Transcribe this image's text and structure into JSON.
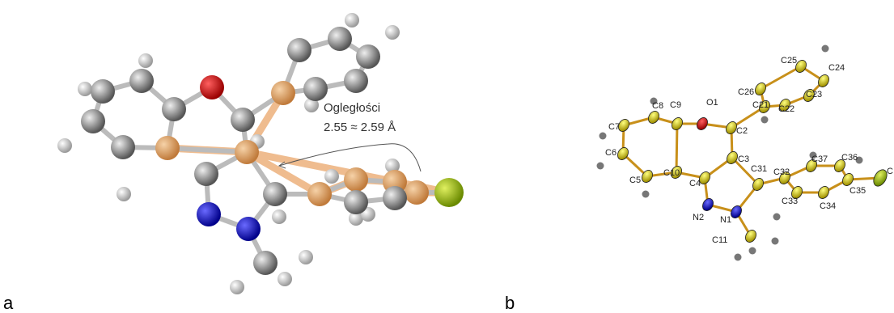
{
  "panel_a": {
    "label": "a",
    "annotation": {
      "title": "Ogległości",
      "distance": "2.55 ≈ 2.59 Å"
    }
  },
  "panel_b": {
    "label": "b",
    "atoms": [
      {
        "label": "O1"
      },
      {
        "label": "C9"
      },
      {
        "label": "C8"
      },
      {
        "label": "C7"
      },
      {
        "label": "C6"
      },
      {
        "label": "C5"
      },
      {
        "label": "C10"
      },
      {
        "label": "C4"
      },
      {
        "label": "C3"
      },
      {
        "label": "C2"
      },
      {
        "label": "C21"
      },
      {
        "label": "C26"
      },
      {
        "label": "C25"
      },
      {
        "label": "C24"
      },
      {
        "label": "C23"
      },
      {
        "label": "C22"
      },
      {
        "label": "C31"
      },
      {
        "label": "N1"
      },
      {
        "label": "N2"
      },
      {
        "label": "C11"
      },
      {
        "label": "C32"
      },
      {
        "label": "C33"
      },
      {
        "label": "C34"
      },
      {
        "label": "C35"
      },
      {
        "label": "C36"
      },
      {
        "label": "C37"
      },
      {
        "label": "C"
      }
    ]
  }
}
